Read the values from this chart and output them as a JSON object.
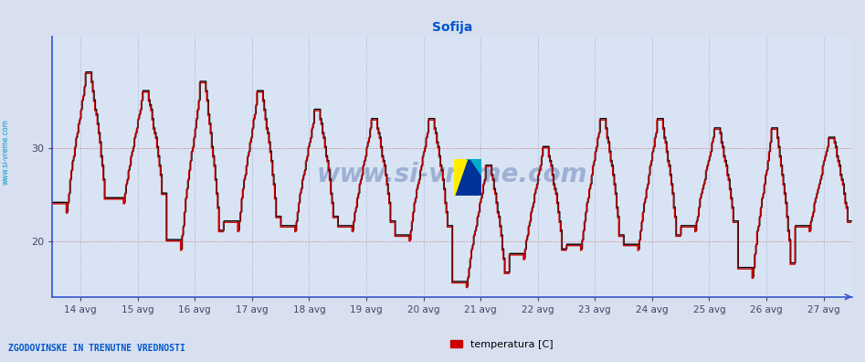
{
  "title": "Sofija",
  "title_color": "#0055cc",
  "title_fontsize": 10,
  "bg_color": "#d8e0f0",
  "plot_bg_color": "#d8e4f4",
  "line_color": "#cc0000",
  "line_color2": "#000000",
  "line_width": 1.0,
  "yticks": [
    20,
    30
  ],
  "ymin": 14,
  "ymax": 42,
  "xmin": 0,
  "xmax": 672,
  "x_tick_positions": [
    24,
    72,
    120,
    168,
    216,
    264,
    312,
    360,
    408,
    456,
    504,
    552,
    600,
    648
  ],
  "x_tick_labels": [
    "14 avg",
    "15 avg",
    "16 avg",
    "17 avg",
    "18 avg",
    "19 avg",
    "20 avg",
    "21 avg",
    "22 avg",
    "23 avg",
    "24 avg",
    "25 avg",
    "26 avg",
    "27 avg"
  ],
  "grid_color_h": "#cc3333",
  "grid_color_v": "#9999bb",
  "watermark_text": "www.si-vreme.com",
  "legend_label": "temperatura [C]",
  "legend_color": "#cc0000",
  "footer_text": "ZGODOVINSKE IN TRENUTNE VREDNOSTI",
  "footer_color": "#0055cc",
  "axis_color": "#3355cc",
  "sidebar_text": "www.si-vreme.com",
  "sidebar_color": "#0099cc",
  "day_maxes": [
    38,
    36,
    37,
    36,
    34,
    33,
    33,
    28,
    30,
    33,
    33,
    32,
    32,
    31
  ],
  "day_mins": [
    23,
    24,
    19,
    21,
    21,
    21,
    20,
    15,
    18,
    19,
    19,
    21,
    16,
    21
  ]
}
